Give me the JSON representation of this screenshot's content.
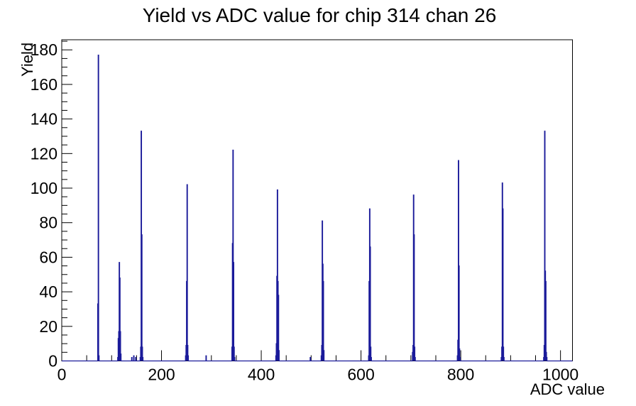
{
  "window": {
    "background": "#ffffff"
  },
  "chart_data": {
    "type": "histogram",
    "title": "Yield vs ADC value for chip 314 chan 26",
    "xlabel": "ADC value",
    "ylabel": "Yield",
    "xlim": [
      0,
      1024
    ],
    "ylim": [
      0,
      185.85
    ],
    "x_major_ticks": [
      0,
      200,
      400,
      600,
      800,
      1000
    ],
    "x_minor_step": 50,
    "y_major_ticks": [
      0,
      20,
      40,
      60,
      80,
      100,
      120,
      140,
      160,
      180
    ],
    "y_minor_step": 5,
    "grid": false,
    "legend": false,
    "line_color": "#1a1a9a",
    "frame_color": "#000000",
    "bin_width_adc": 1,
    "bins": [
      [
        72,
        33
      ],
      [
        73,
        177
      ],
      [
        74,
        3
      ],
      [
        112,
        2
      ],
      [
        113,
        13
      ],
      [
        114,
        17
      ],
      [
        115,
        57
      ],
      [
        116,
        48
      ],
      [
        117,
        17
      ],
      [
        118,
        4
      ],
      [
        140,
        2
      ],
      [
        144,
        3
      ],
      [
        148,
        2
      ],
      [
        157,
        2
      ],
      [
        158,
        8
      ],
      [
        159,
        133
      ],
      [
        160,
        73
      ],
      [
        161,
        8
      ],
      [
        162,
        2
      ],
      [
        248,
        3
      ],
      [
        249,
        9
      ],
      [
        250,
        46
      ],
      [
        251,
        102
      ],
      [
        252,
        9
      ],
      [
        253,
        3
      ],
      [
        289,
        3
      ],
      [
        341,
        8
      ],
      [
        342,
        68
      ],
      [
        343,
        122
      ],
      [
        344,
        57
      ],
      [
        345,
        8
      ],
      [
        346,
        2
      ],
      [
        429,
        3
      ],
      [
        430,
        10
      ],
      [
        431,
        49
      ],
      [
        432,
        99
      ],
      [
        433,
        46
      ],
      [
        434,
        38
      ],
      [
        435,
        6
      ],
      [
        498,
        2
      ],
      [
        520,
        3
      ],
      [
        521,
        9
      ],
      [
        522,
        81
      ],
      [
        523,
        56
      ],
      [
        524,
        46
      ],
      [
        525,
        6
      ],
      [
        615,
        3
      ],
      [
        616,
        46
      ],
      [
        617,
        88
      ],
      [
        618,
        66
      ],
      [
        619,
        8
      ],
      [
        620,
        2
      ],
      [
        703,
        5
      ],
      [
        704,
        9
      ],
      [
        705,
        96
      ],
      [
        706,
        73
      ],
      [
        707,
        8
      ],
      [
        708,
        2
      ],
      [
        793,
        3
      ],
      [
        794,
        12
      ],
      [
        795,
        116
      ],
      [
        796,
        55
      ],
      [
        797,
        7
      ],
      [
        798,
        2
      ],
      [
        881,
        2
      ],
      [
        882,
        8
      ],
      [
        883,
        103
      ],
      [
        884,
        88
      ],
      [
        885,
        8
      ],
      [
        886,
        2
      ],
      [
        966,
        2
      ],
      [
        967,
        9
      ],
      [
        968,
        133
      ],
      [
        969,
        52
      ],
      [
        970,
        46
      ],
      [
        971,
        5
      ],
      [
        972,
        2
      ]
    ]
  }
}
